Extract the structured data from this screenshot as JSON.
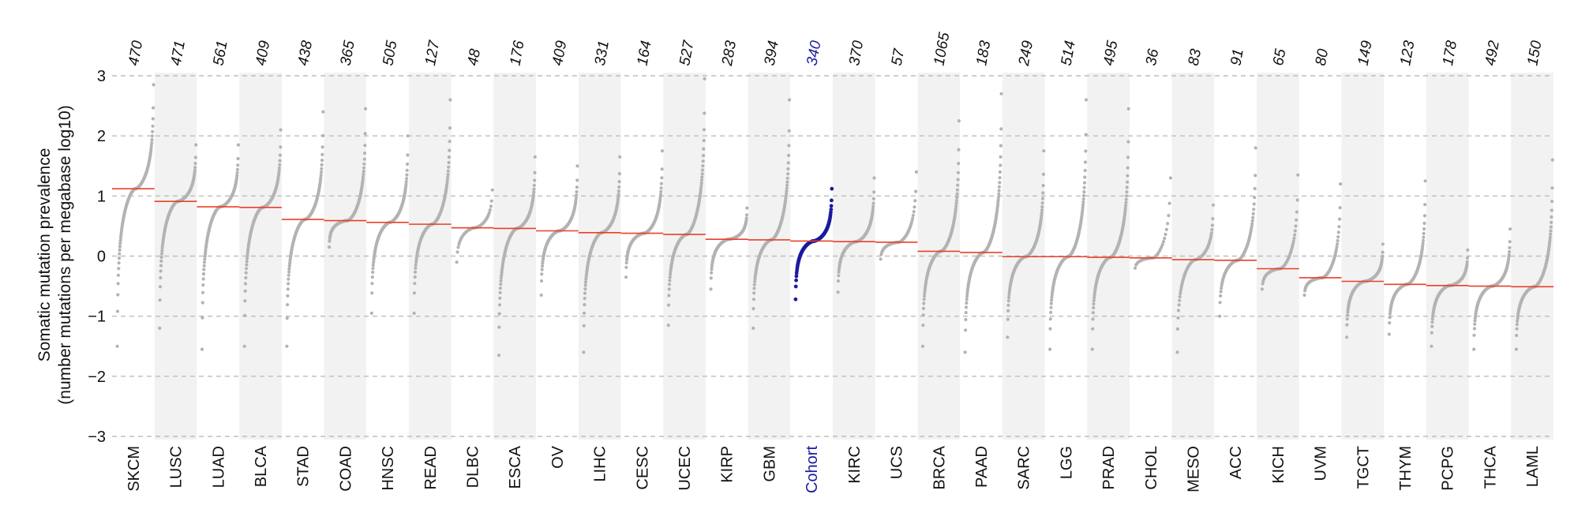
{
  "colors": {
    "point": "#b3b3b3",
    "highlight": "#1a1aa0",
    "median": "#e8402a",
    "band": "#f2f2f2",
    "grid": "#bdbdbd"
  },
  "chart_data": {
    "type": "scatter",
    "ylabel_line1": "Somatic mutation prevalence",
    "ylabel_line2": "(number mutations per megabase log10)",
    "ylim": [
      -3,
      3
    ],
    "yticks": [
      "3",
      "2",
      "1",
      "0",
      "−1",
      "−2",
      "−3"
    ],
    "ytick_values": [
      3,
      2,
      1,
      0,
      -1,
      -2,
      -3
    ],
    "grid": true,
    "highlight_category": "Cohort",
    "categories": [
      {
        "name": "SKCM",
        "n": "470",
        "median": 1.12,
        "min": -1.5,
        "max": 2.85
      },
      {
        "name": "LUSC",
        "n": "471",
        "median": 0.91,
        "min": -1.2,
        "max": 1.85
      },
      {
        "name": "LUAD",
        "n": "561",
        "median": 0.82,
        "min": -1.55,
        "max": 1.85
      },
      {
        "name": "BLCA",
        "n": "409",
        "median": 0.81,
        "min": -1.5,
        "max": 2.1
      },
      {
        "name": "STAD",
        "n": "438",
        "median": 0.61,
        "min": -1.5,
        "max": 2.4
      },
      {
        "name": "COAD",
        "n": "365",
        "median": 0.59,
        "min": 0.15,
        "max": 2.45
      },
      {
        "name": "HNSC",
        "n": "505",
        "median": 0.56,
        "min": -0.95,
        "max": 2.0
      },
      {
        "name": "READ",
        "n": "127",
        "median": 0.53,
        "min": -0.95,
        "max": 2.6
      },
      {
        "name": "DLBC",
        "n": "48",
        "median": 0.47,
        "min": -0.1,
        "max": 1.1
      },
      {
        "name": "ESCA",
        "n": "176",
        "median": 0.46,
        "min": -1.65,
        "max": 1.65
      },
      {
        "name": "OV",
        "n": "409",
        "median": 0.42,
        "min": -0.65,
        "max": 1.5
      },
      {
        "name": "LIHC",
        "n": "331",
        "median": 0.39,
        "min": -1.6,
        "max": 1.65
      },
      {
        "name": "CESC",
        "n": "164",
        "median": 0.38,
        "min": -0.35,
        "max": 1.75
      },
      {
        "name": "UCEC",
        "n": "527",
        "median": 0.36,
        "min": -1.15,
        "max": 2.95
      },
      {
        "name": "KIRP",
        "n": "283",
        "median": 0.28,
        "min": -0.55,
        "max": 0.8
      },
      {
        "name": "GBM",
        "n": "394",
        "median": 0.27,
        "min": -1.2,
        "max": 2.6
      },
      {
        "name": "Cohort",
        "n": "340",
        "median": 0.25,
        "min": -0.72,
        "max": 1.12
      },
      {
        "name": "KIRC",
        "n": "370",
        "median": 0.24,
        "min": -0.6,
        "max": 1.3
      },
      {
        "name": "UCS",
        "n": "57",
        "median": 0.23,
        "min": -0.05,
        "max": 1.4
      },
      {
        "name": "BRCA",
        "n": "1065",
        "median": 0.08,
        "min": -1.5,
        "max": 2.25
      },
      {
        "name": "PAAD",
        "n": "183",
        "median": 0.06,
        "min": -1.6,
        "max": 2.7
      },
      {
        "name": "SARC",
        "n": "249",
        "median": -0.01,
        "min": -1.35,
        "max": 1.75
      },
      {
        "name": "LGG",
        "n": "514",
        "median": -0.01,
        "min": -1.55,
        "max": 2.6
      },
      {
        "name": "PRAD",
        "n": "495",
        "median": -0.02,
        "min": -1.55,
        "max": 2.45
      },
      {
        "name": "CHOL",
        "n": "36",
        "median": -0.03,
        "min": -0.2,
        "max": 1.3
      },
      {
        "name": "MESO",
        "n": "83",
        "median": -0.06,
        "min": -1.6,
        "max": 0.85
      },
      {
        "name": "ACC",
        "n": "91",
        "median": -0.07,
        "min": -1.0,
        "max": 1.8
      },
      {
        "name": "KICH",
        "n": "65",
        "median": -0.21,
        "min": -0.55,
        "max": 1.35
      },
      {
        "name": "UVM",
        "n": "80",
        "median": -0.36,
        "min": -0.65,
        "max": 1.2
      },
      {
        "name": "TGCT",
        "n": "149",
        "median": -0.42,
        "min": -1.35,
        "max": 0.2
      },
      {
        "name": "THYM",
        "n": "123",
        "median": -0.47,
        "min": -1.3,
        "max": 1.25
      },
      {
        "name": "PCPG",
        "n": "178",
        "median": -0.49,
        "min": -1.5,
        "max": 0.1
      },
      {
        "name": "THCA",
        "n": "492",
        "median": -0.5,
        "min": -1.55,
        "max": 0.45
      },
      {
        "name": "LAML",
        "n": "150",
        "median": -0.51,
        "min": -1.55,
        "max": 1.6
      }
    ]
  }
}
